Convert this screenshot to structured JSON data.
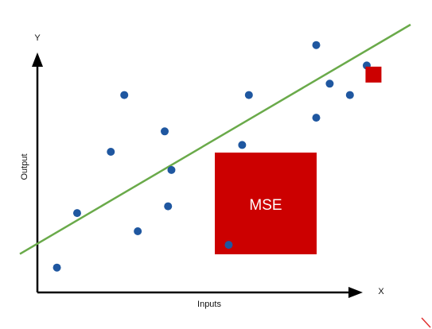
{
  "axes": {
    "y_letter": "Y",
    "x_letter": "X",
    "x_label": "Inputs",
    "y_label": "Output"
  },
  "box_label": "MSE",
  "colors": {
    "point": "#1f57a0",
    "line": "#6aaa4a",
    "box": "#cc0000",
    "axis": "#000000",
    "box_text": "#ffffff",
    "corner_mark": "#e03030"
  },
  "chart_data": {
    "type": "scatter",
    "title": "",
    "xlabel": "Inputs",
    "ylabel": "Output",
    "points": [
      {
        "x": 0.5,
        "y": 0.1
      },
      {
        "x": 1.1,
        "y": 2.5
      },
      {
        "x": 2.1,
        "y": 5.2
      },
      {
        "x": 2.5,
        "y": 7.7
      },
      {
        "x": 2.9,
        "y": 1.7
      },
      {
        "x": 3.7,
        "y": 6.1
      },
      {
        "x": 3.8,
        "y": 2.8
      },
      {
        "x": 3.9,
        "y": 4.4
      },
      {
        "x": 5.6,
        "y": 1.1
      },
      {
        "x": 6.0,
        "y": 5.5
      },
      {
        "x": 6.2,
        "y": 7.7
      },
      {
        "x": 8.2,
        "y": 6.7
      },
      {
        "x": 8.2,
        "y": 9.9
      },
      {
        "x": 8.6,
        "y": 8.2
      },
      {
        "x": 9.2,
        "y": 7.7
      },
      {
        "x": 9.7,
        "y": 9.0
      }
    ],
    "fit_line": {
      "x": [
        -0.6,
        11.0
      ],
      "y": [
        0.7,
        10.8
      ]
    },
    "highlighted_point": {
      "x": 9.9,
      "y": 8.6
    },
    "xlim": [
      -0.6,
      11.0
    ],
    "ylim": [
      -0.4,
      10.8
    ],
    "grid": false,
    "legend": "none"
  }
}
